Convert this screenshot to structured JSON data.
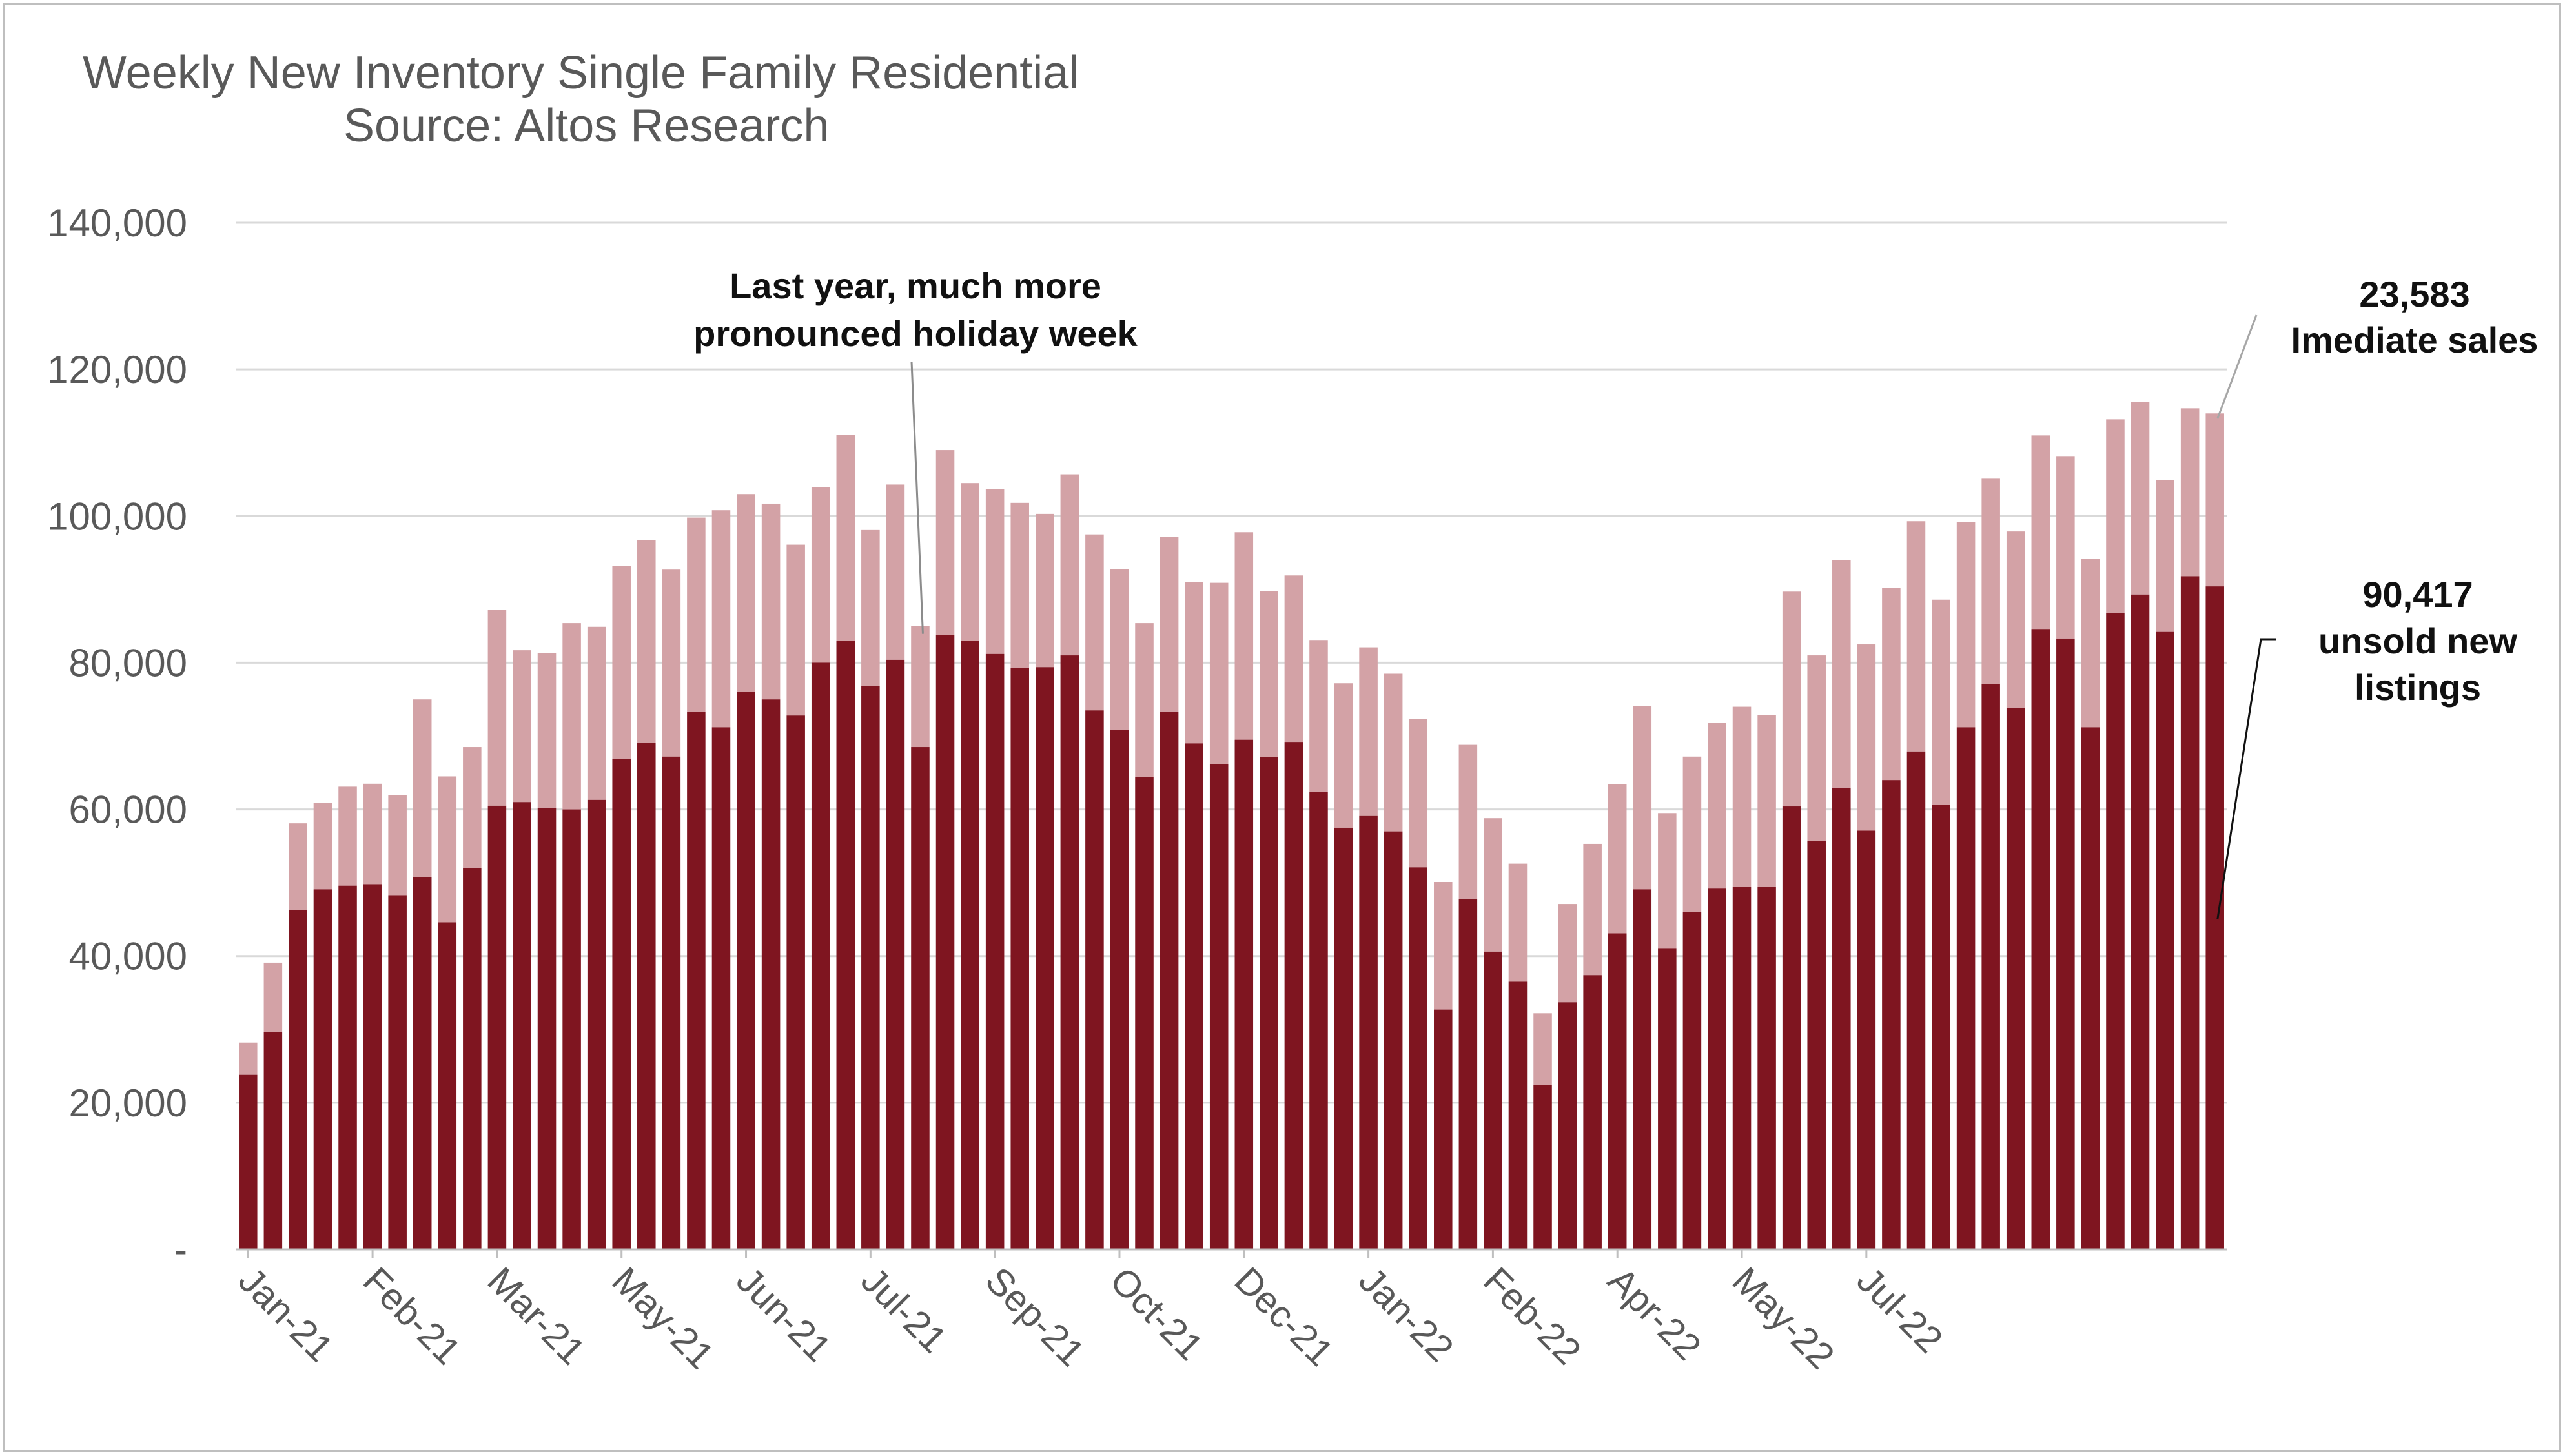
{
  "chart_data": {
    "type": "bar",
    "stacked": true,
    "title": "Weekly New Inventory Single Family Residential",
    "subtitle": "Source: Altos Research",
    "ylim": [
      0,
      140000
    ],
    "yticks": [
      0,
      20000,
      40000,
      60000,
      80000,
      100000,
      120000,
      140000
    ],
    "ytick_labels": [
      "-",
      "20,000",
      "40,000",
      "60,000",
      "80,000",
      "100,000",
      "120,000",
      "140,000"
    ],
    "xtick_labels": [
      "Jan-21",
      "Feb-21",
      "Mar-21",
      "May-21",
      "Jun-21",
      "Jul-21",
      "Sep-21",
      "Oct-21",
      "Dec-21",
      "Jan-22",
      "Feb-22",
      "Apr-22",
      "May-22",
      "Jul-22"
    ],
    "xtick_indices": [
      0,
      5,
      10,
      15,
      20,
      25,
      30,
      35,
      40,
      45,
      50,
      55,
      60,
      65
    ],
    "grid": true,
    "colors": {
      "unsold": "#7f1520",
      "immediate": "#d3a2a6",
      "grid": "#d9d9d9",
      "axis": "#bfbfbf",
      "text": "#595959"
    },
    "series": [
      {
        "key": "unsold",
        "values": [
          23800,
          29600,
          46300,
          49100,
          49600,
          49800,
          48300,
          50800,
          44600,
          52000,
          60500,
          61000,
          60200,
          60000,
          61300,
          66900,
          69100,
          67200,
          73300,
          71200,
          76000,
          75000,
          72800,
          80000,
          83000,
          76800,
          80400,
          68500,
          83800,
          83000,
          81200,
          79300,
          79400,
          81000,
          73500,
          70800,
          64400,
          73300,
          69000,
          66200,
          69500,
          67100,
          69200,
          62400,
          57500,
          59100,
          57000,
          52100,
          32700,
          47800,
          40600,
          36500,
          22400,
          33700,
          37400,
          43100,
          49100,
          41000,
          46000,
          49200,
          49400,
          49400,
          60400,
          55700,
          62900,
          57100,
          64000,
          67900,
          60600,
          71200,
          77100,
          73800,
          84600,
          83300,
          71200,
          86800,
          89300,
          84200,
          91800,
          90417
        ]
      },
      {
        "key": "immediate",
        "values": [
          4400,
          9500,
          11800,
          11800,
          13500,
          13700,
          13600,
          24200,
          19900,
          16500,
          26700,
          20700,
          21100,
          25400,
          23600,
          26300,
          27600,
          25500,
          26500,
          29600,
          27000,
          26700,
          23300,
          23900,
          28100,
          21300,
          23900,
          16500,
          25200,
          21500,
          22500,
          22500,
          20900,
          24700,
          24000,
          22000,
          21000,
          23900,
          22000,
          24700,
          28300,
          22700,
          22700,
          20700,
          19700,
          23000,
          21500,
          20200,
          17400,
          21000,
          18200,
          16100,
          9800,
          13400,
          17900,
          20300,
          25000,
          18500,
          21200,
          22600,
          24600,
          23500,
          29300,
          25300,
          31100,
          25400,
          26200,
          31400,
          28000,
          28000,
          28000,
          24100,
          26400,
          24800,
          23000,
          26400,
          26300,
          20700,
          22900,
          23583
        ]
      }
    ],
    "annotations": {
      "holiday_line1": "Last year, much more",
      "holiday_line2": "pronounced holiday week",
      "immediate_value": "23,583",
      "immediate_label": "Imediate sales",
      "unsold_value": "90,417",
      "unsold_label1": "unsold new",
      "unsold_label2": "listings"
    }
  }
}
